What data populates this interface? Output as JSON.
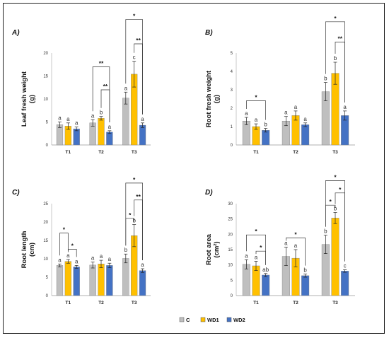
{
  "colors": {
    "C": "#bfbfbf",
    "WD1": "#ffc000",
    "WD2": "#4472c4"
  },
  "legend": {
    "C": "C",
    "WD1": "WD1",
    "WD2": "WD2"
  },
  "chart_data": [
    {
      "type": "bar",
      "panel_label": "A)",
      "ylabel_lines": [
        "Leaf fresh weight",
        "(g)"
      ],
      "categories": [
        "T1",
        "T2",
        "T3"
      ],
      "ylim": [
        0,
        20
      ],
      "yticks": [
        0,
        5,
        10,
        15,
        20
      ],
      "series": [
        {
          "name": "C",
          "values": [
            4.4,
            4.8,
            10.2
          ],
          "errors": [
            0.6,
            0.7,
            1.3
          ],
          "labels": [
            "a",
            "a",
            "a"
          ]
        },
        {
          "name": "WD1",
          "values": [
            4.1,
            5.8,
            15.4
          ],
          "errors": [
            0.7,
            0.4,
            2.8
          ],
          "labels": [
            "a",
            "b",
            "c"
          ]
        },
        {
          "name": "WD2",
          "values": [
            3.5,
            2.8,
            4.3
          ],
          "errors": [
            0.4,
            0.3,
            0.5
          ],
          "labels": [
            "a",
            "a",
            "a"
          ]
        }
      ],
      "brackets": [
        {
          "cat": 1,
          "from": 0,
          "to": 2,
          "level": 17.0,
          "text": "**"
        },
        {
          "cat": 1,
          "from": 1,
          "to": 2,
          "level": 12.0,
          "text": "**"
        },
        {
          "cat": 2,
          "from": 0,
          "to": 2,
          "level": 27.3,
          "text": "*"
        },
        {
          "cat": 2,
          "from": 1,
          "to": 2,
          "level": 22.0,
          "text": "**"
        }
      ]
    },
    {
      "type": "bar",
      "panel_label": "B)",
      "ylabel_lines": [
        "Root fresh weight",
        "(g)"
      ],
      "categories": [
        "T1",
        "T2",
        "T3"
      ],
      "ylim": [
        0,
        5
      ],
      "yticks": [
        0,
        1,
        2,
        3,
        4,
        5
      ],
      "series": [
        {
          "name": "C",
          "values": [
            1.3,
            1.3,
            2.9
          ],
          "errors": [
            0.2,
            0.25,
            0.5
          ],
          "labels": [
            "a",
            "a",
            "b"
          ]
        },
        {
          "name": "WD1",
          "values": [
            1.0,
            1.6,
            3.9
          ],
          "errors": [
            0.15,
            0.25,
            0.6
          ],
          "labels": [
            "a",
            "a",
            "b"
          ]
        },
        {
          "name": "WD2",
          "values": [
            0.8,
            1.1,
            1.6
          ],
          "errors": [
            0.1,
            0.1,
            0.25
          ],
          "labels": [
            "b",
            "a",
            "a"
          ]
        }
      ],
      "brackets": [
        {
          "cat": 0,
          "from": 0,
          "to": 2,
          "level": 2.4,
          "text": "*"
        },
        {
          "cat": 2,
          "from": 0,
          "to": 2,
          "level": 6.7,
          "text": "*"
        },
        {
          "cat": 2,
          "from": 1,
          "to": 2,
          "level": 5.6,
          "text": "**"
        }
      ]
    },
    {
      "type": "bar",
      "panel_label": "C)",
      "ylabel_lines": [
        "Root length",
        "(cm)"
      ],
      "categories": [
        "T1",
        "T2",
        "T3"
      ],
      "ylim": [
        0,
        25
      ],
      "yticks": [
        0,
        5,
        10,
        15,
        20,
        25
      ],
      "series": [
        {
          "name": "C",
          "values": [
            8.2,
            8.3,
            10.1
          ],
          "errors": [
            0.4,
            0.8,
            1.2
          ],
          "labels": [
            "a",
            "a",
            "b"
          ]
        },
        {
          "name": "WD1",
          "values": [
            9.3,
            8.6,
            16.3
          ],
          "errors": [
            0.5,
            1.0,
            3.0
          ],
          "labels": [
            "a",
            "a",
            "b"
          ]
        },
        {
          "name": "WD2",
          "values": [
            7.8,
            8.2,
            6.8
          ],
          "errors": [
            0.4,
            0.6,
            0.5
          ],
          "labels": [
            "a",
            "a",
            "a"
          ]
        }
      ],
      "brackets": [
        {
          "cat": 0,
          "from": 0,
          "to": 1,
          "level": 17.0,
          "text": "*"
        },
        {
          "cat": 0,
          "from": 1,
          "to": 2,
          "level": 12.6,
          "text": "*"
        },
        {
          "cat": 2,
          "from": 0,
          "to": 1,
          "level": 21.0,
          "text": "*"
        },
        {
          "cat": 2,
          "from": 0,
          "to": 2,
          "level": 30.6,
          "text": "*"
        },
        {
          "cat": 2,
          "from": 1,
          "to": 2,
          "level": 26.0,
          "text": "**"
        }
      ]
    },
    {
      "type": "bar",
      "panel_label": "D)",
      "ylabel_lines": [
        "Root area",
        "(cm²)"
      ],
      "categories": [
        "T1",
        "T2",
        "T3"
      ],
      "ylim": [
        0,
        30
      ],
      "yticks": [
        0,
        5,
        10,
        15,
        20,
        25,
        30
      ],
      "series": [
        {
          "name": "C",
          "values": [
            10.2,
            12.8,
            16.7
          ],
          "errors": [
            1.5,
            3.0,
            3.0
          ],
          "labels": [
            "a",
            "a",
            "b"
          ]
        },
        {
          "name": "WD1",
          "values": [
            9.7,
            12.2,
            25.3
          ],
          "errors": [
            1.5,
            2.8,
            1.8
          ],
          "labels": [
            "a",
            "a",
            "b"
          ]
        },
        {
          "name": "WD2",
          "values": [
            6.7,
            6.5,
            8.0
          ],
          "errors": [
            0.5,
            0.5,
            0.4
          ],
          "labels": [
            "ab",
            "b",
            "c"
          ]
        }
      ],
      "brackets": [
        {
          "cat": 0,
          "from": 0,
          "to": 2,
          "level": 19.8,
          "text": "*"
        },
        {
          "cat": 0,
          "from": 1,
          "to": 2,
          "level": 14.5,
          "text": "*"
        },
        {
          "cat": 1,
          "from": 0,
          "to": 2,
          "level": 18.8,
          "text": "*"
        },
        {
          "cat": 2,
          "from": 0,
          "to": 1,
          "level": 29.5,
          "text": "*"
        },
        {
          "cat": 2,
          "from": 0,
          "to": 2,
          "level": 37.5,
          "text": "*"
        },
        {
          "cat": 2,
          "from": 1,
          "to": 2,
          "level": 33.5,
          "text": "*"
        }
      ]
    }
  ]
}
